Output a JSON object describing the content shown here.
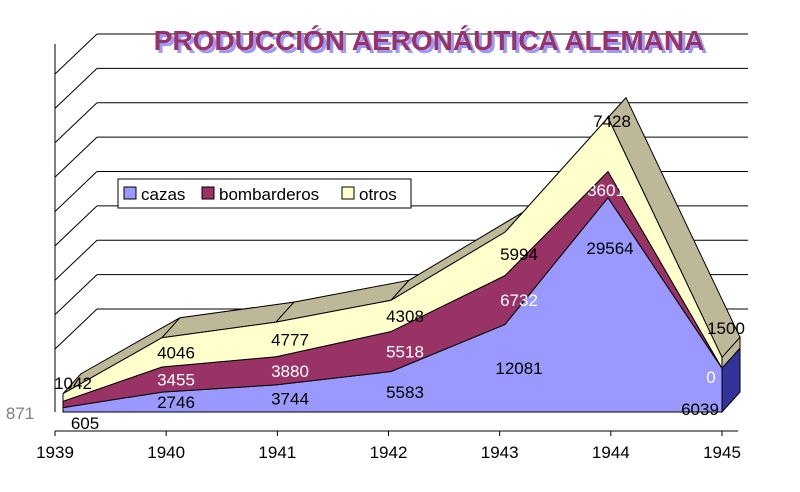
{
  "title": "PRODUCCIÓN AERONÁUTICA ALEMANA",
  "colors": {
    "cazas": "#9999ff",
    "bombarderos": "#993366",
    "otros": "#ffffcc",
    "side": "#bdb898",
    "side_dark": "#333399",
    "title_fill": "#993366",
    "title_shadow": "#9999ff"
  },
  "chart_data": {
    "type": "area",
    "stacked": true,
    "categories": [
      "1939",
      "1940",
      "1941",
      "1942",
      "1943",
      "1944",
      "1945"
    ],
    "series": [
      {
        "name": "cazas",
        "values": [
          605,
          2746,
          3744,
          5583,
          12081,
          29564,
          6039
        ],
        "labels": [
          "605",
          "2746",
          "3744",
          "5583",
          "12081",
          "29564",
          "6039"
        ]
      },
      {
        "name": "bombarderos",
        "values": [
          871,
          3455,
          3880,
          5518,
          6732,
          3601,
          0
        ],
        "labels": [
          "871",
          "3455",
          "3880",
          "5518",
          "6732",
          "3601",
          "0"
        ]
      },
      {
        "name": "otros",
        "values": [
          1042,
          4046,
          4777,
          4308,
          5994,
          7428,
          1500
        ],
        "labels": [
          "1042",
          "4046",
          "4777",
          "4308",
          "5994",
          "7428",
          "1500"
        ]
      }
    ],
    "legend": {
      "position": "left",
      "entries": [
        "cazas",
        "bombarderos",
        "otros"
      ]
    },
    "grid": true
  }
}
